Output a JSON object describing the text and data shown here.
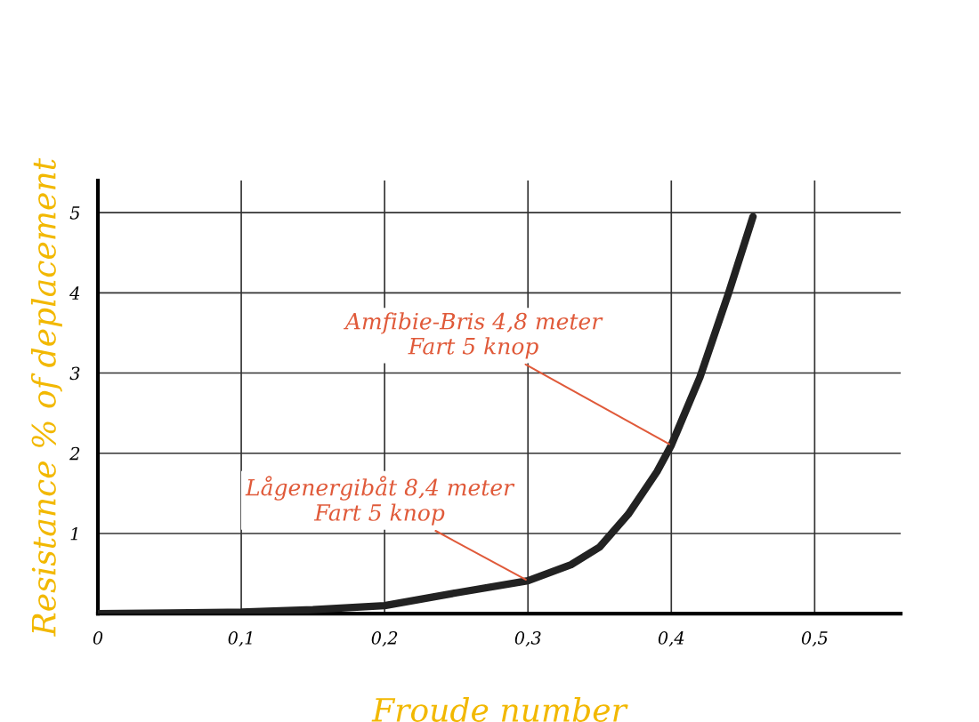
{
  "chart_data": {
    "type": "line",
    "xlabel": "Froude number",
    "ylabel": "Resistance % of deplacement",
    "x": [
      0,
      0.05,
      0.1,
      0.15,
      0.2,
      0.25,
      0.3,
      0.33,
      0.35,
      0.37,
      0.39,
      0.4,
      0.42,
      0.44,
      0.457
    ],
    "series": [
      {
        "color": "#222222",
        "values": [
          0,
          0.01,
          0.02,
          0.05,
          0.1,
          0.26,
          0.41,
          0.61,
          0.83,
          1.24,
          1.77,
          2.1,
          2.95,
          4.0,
          4.95
        ]
      }
    ],
    "xlim": [
      0,
      0.56
    ],
    "ylim": [
      0,
      5.4
    ],
    "xticks": [
      0,
      {
        "value": 0.1,
        "label": "0,1"
      },
      {
        "value": 0.2,
        "label": "0,2"
      },
      {
        "value": 0.3,
        "label": "0,3"
      },
      {
        "value": 0.4,
        "label": "0,4"
      },
      {
        "value": 0.5,
        "label": "0,5"
      }
    ],
    "yticks": [
      1,
      2,
      3,
      4,
      5
    ],
    "grid": true,
    "marker": "none",
    "line_style": "solid",
    "annotations": [
      {
        "text": "Amfibie-Bris 4,8 meter\nFart 5 knop",
        "x": 0.4,
        "y": 2.1
      },
      {
        "text": "Lågenergibåt 8,4 meter\nFart 5 knop",
        "x": 0.3,
        "y": 0.41
      }
    ]
  }
}
